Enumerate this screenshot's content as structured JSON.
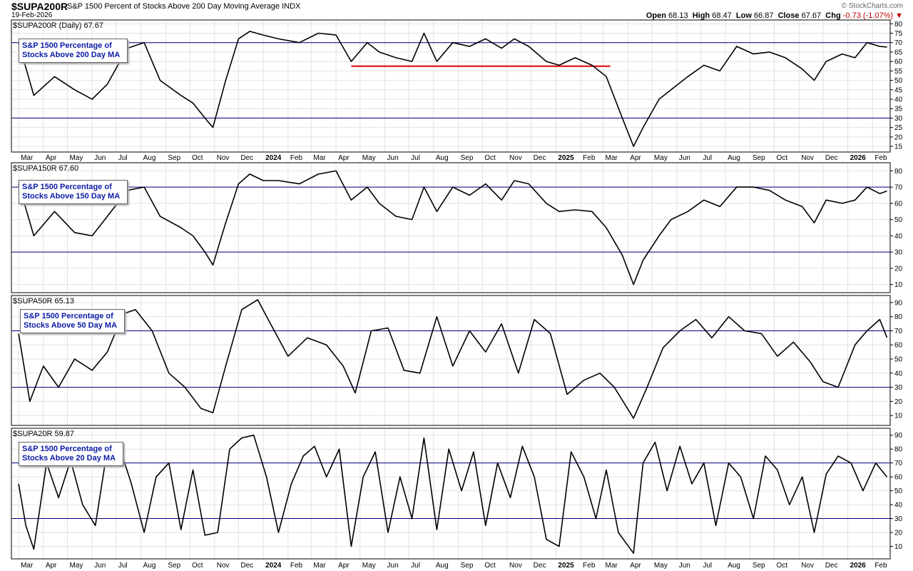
{
  "header": {
    "symbol": "$SUPA200R",
    "description": "S&P 1500 Percent of Stocks Above 200 Day Moving Average",
    "exchange": "INDX",
    "date": "19-Feb-2026",
    "watermark": "© StockCharts.com",
    "ohlc": {
      "open_label": "Open",
      "open": "68.13",
      "high_label": "High",
      "high": "68.47",
      "low_label": "Low",
      "low": "66.87",
      "close_label": "Close",
      "close": "67.67",
      "chg_label": "Chg",
      "chg": "-0.73 (-1.07%)",
      "chg_icon": "down-triangle-icon",
      "chg_color": "#c00000"
    }
  },
  "x_axis_labels": [
    "Mar",
    "Apr",
    "May",
    "Jun",
    "Jul",
    "Aug",
    "Sep",
    "Oct",
    "Nov",
    "Dec",
    "2024",
    "Feb",
    "Mar",
    "Apr",
    "May",
    "Jun",
    "Jul",
    "Aug",
    "Sep",
    "Oct",
    "Nov",
    "Dec",
    "2025",
    "Feb",
    "Mar",
    "Apr",
    "May",
    "Jun",
    "Jul",
    "Aug",
    "Sep",
    "Oct",
    "Nov",
    "Dec",
    "2026",
    "Feb"
  ],
  "colors": {
    "line": "#000000",
    "hline": "#000080",
    "grid": "#e2e2e2",
    "support": "#e00000",
    "annotation_text": "#0a1aa6"
  },
  "chart_data": [
    {
      "type": "line",
      "symbol": "$SUPA200R",
      "name": "$SUPA200R (Daily) 67.67",
      "annotation": "S&P 1500 Percentage of\nStocks Above 200 Day MA",
      "ylim": [
        12,
        82
      ],
      "yticks": [
        15,
        20,
        25,
        30,
        35,
        40,
        45,
        50,
        55,
        60,
        65,
        70,
        75,
        80
      ],
      "hlines": [
        30,
        70
      ],
      "support_line": {
        "from": "2024-04-20",
        "to": "2025-03-10",
        "value": 57.5
      },
      "x": [
        "2023-03-01",
        "2023-03-20",
        "2023-04-15",
        "2023-05-10",
        "2023-06-01",
        "2023-06-20",
        "2023-07-15",
        "2023-08-05",
        "2023-08-25",
        "2023-09-20",
        "2023-10-05",
        "2023-10-20",
        "2023-10-30",
        "2023-11-15",
        "2023-12-01",
        "2023-12-15",
        "2024-01-01",
        "2024-01-20",
        "2024-02-15",
        "2024-03-10",
        "2024-04-01",
        "2024-04-20",
        "2024-05-10",
        "2024-05-25",
        "2024-06-15",
        "2024-07-05",
        "2024-07-20",
        "2024-08-05",
        "2024-08-25",
        "2024-09-15",
        "2024-10-05",
        "2024-10-25",
        "2024-11-10",
        "2024-11-28",
        "2024-12-20",
        "2025-01-05",
        "2025-01-25",
        "2025-02-15",
        "2025-03-05",
        "2025-03-25",
        "2025-04-08",
        "2025-04-20",
        "2025-05-10",
        "2025-05-25",
        "2025-06-15",
        "2025-07-05",
        "2025-07-25",
        "2025-08-15",
        "2025-09-05",
        "2025-09-25",
        "2025-10-15",
        "2025-11-05",
        "2025-11-20",
        "2025-12-05",
        "2025-12-25",
        "2026-01-10",
        "2026-01-25",
        "2026-02-10",
        "2026-02-19"
      ],
      "y": [
        70,
        42,
        52,
        45,
        40,
        48,
        67,
        70,
        50,
        42,
        38,
        30,
        25,
        50,
        72,
        76,
        74,
        72,
        70,
        75,
        74,
        60,
        70,
        65,
        62,
        60,
        75,
        60,
        70,
        68,
        72,
        67,
        72,
        68,
        60,
        58,
        62,
        58,
        52,
        30,
        15,
        25,
        40,
        45,
        52,
        58,
        55,
        68,
        64,
        65,
        62,
        56,
        50,
        60,
        64,
        62,
        70,
        68,
        67.67
      ]
    },
    {
      "type": "line",
      "symbol": "$SUPA150R",
      "name": "$SUPA150R 67.60",
      "annotation": "S&P 1500 Percentage of\nStocks Above 150 Day MA",
      "ylim": [
        5,
        85
      ],
      "yticks": [
        10,
        20,
        30,
        40,
        50,
        60,
        70,
        80
      ],
      "hlines": [
        30,
        70
      ],
      "x": [
        "2023-03-01",
        "2023-03-20",
        "2023-04-15",
        "2023-05-10",
        "2023-06-01",
        "2023-06-20",
        "2023-07-15",
        "2023-08-05",
        "2023-08-25",
        "2023-09-20",
        "2023-10-05",
        "2023-10-20",
        "2023-10-30",
        "2023-11-15",
        "2023-12-01",
        "2023-12-15",
        "2024-01-01",
        "2024-01-20",
        "2024-02-15",
        "2024-03-10",
        "2024-04-01",
        "2024-04-20",
        "2024-05-10",
        "2024-05-25",
        "2024-06-15",
        "2024-07-05",
        "2024-07-20",
        "2024-08-05",
        "2024-08-25",
        "2024-09-15",
        "2024-10-05",
        "2024-10-25",
        "2024-11-10",
        "2024-11-28",
        "2024-12-20",
        "2025-01-05",
        "2025-01-25",
        "2025-02-15",
        "2025-03-05",
        "2025-03-25",
        "2025-04-08",
        "2025-04-20",
        "2025-05-10",
        "2025-05-25",
        "2025-06-15",
        "2025-07-05",
        "2025-07-25",
        "2025-08-15",
        "2025-09-05",
        "2025-09-25",
        "2025-10-15",
        "2025-11-05",
        "2025-11-20",
        "2025-12-05",
        "2025-12-25",
        "2026-01-10",
        "2026-01-25",
        "2026-02-10",
        "2026-02-19"
      ],
      "y": [
        72,
        40,
        55,
        42,
        40,
        52,
        68,
        70,
        52,
        45,
        40,
        30,
        22,
        48,
        72,
        78,
        74,
        74,
        72,
        78,
        80,
        62,
        70,
        60,
        52,
        50,
        70,
        55,
        70,
        65,
        72,
        62,
        74,
        72,
        60,
        55,
        56,
        55,
        45,
        28,
        10,
        25,
        40,
        50,
        55,
        62,
        58,
        70,
        70,
        68,
        62,
        58,
        48,
        62,
        60,
        62,
        70,
        66,
        67.6
      ]
    },
    {
      "type": "line",
      "symbol": "$SUPA50R",
      "name": "$SUPA50R 65.13",
      "annotation": "S&P 1500 Percentage of\nStocks Above 50 Day MA",
      "ylim": [
        3,
        95
      ],
      "yticks": [
        10,
        20,
        30,
        40,
        50,
        60,
        70,
        80,
        90
      ],
      "hlines": [
        30,
        70
      ],
      "x": [
        "2023-03-01",
        "2023-03-15",
        "2023-04-01",
        "2023-04-20",
        "2023-05-10",
        "2023-06-01",
        "2023-06-20",
        "2023-07-10",
        "2023-07-25",
        "2023-08-15",
        "2023-09-05",
        "2023-09-25",
        "2023-10-15",
        "2023-10-30",
        "2023-11-15",
        "2023-12-05",
        "2023-12-25",
        "2024-01-10",
        "2024-02-01",
        "2024-02-25",
        "2024-03-20",
        "2024-04-10",
        "2024-04-25",
        "2024-05-15",
        "2024-06-05",
        "2024-06-25",
        "2024-07-15",
        "2024-08-05",
        "2024-08-25",
        "2024-09-15",
        "2024-10-05",
        "2024-10-25",
        "2024-11-15",
        "2024-12-05",
        "2024-12-25",
        "2025-01-15",
        "2025-02-05",
        "2025-02-25",
        "2025-03-15",
        "2025-04-08",
        "2025-04-25",
        "2025-05-15",
        "2025-06-05",
        "2025-06-25",
        "2025-07-15",
        "2025-08-05",
        "2025-08-25",
        "2025-09-15",
        "2025-10-05",
        "2025-10-25",
        "2025-11-15",
        "2025-12-01",
        "2025-12-20",
        "2026-01-10",
        "2026-01-25",
        "2026-02-10",
        "2026-02-19"
      ],
      "y": [
        68,
        20,
        45,
        30,
        50,
        42,
        55,
        82,
        85,
        70,
        40,
        30,
        15,
        12,
        45,
        85,
        92,
        75,
        52,
        65,
        60,
        45,
        26,
        70,
        72,
        42,
        40,
        80,
        45,
        70,
        55,
        75,
        40,
        78,
        68,
        25,
        35,
        40,
        30,
        8,
        30,
        58,
        70,
        78,
        65,
        80,
        70,
        68,
        52,
        62,
        48,
        34,
        30,
        60,
        70,
        78,
        65.13
      ]
    },
    {
      "type": "line",
      "symbol": "$SUPA20R",
      "name": "$SUPA20R 59.87",
      "annotation": "S&P 1500 Percentage of\nStocks Above 20 Day MA",
      "ylim": [
        1,
        95
      ],
      "yticks": [
        10,
        20,
        30,
        40,
        50,
        60,
        70,
        80,
        90
      ],
      "hlines": [
        30,
        70
      ],
      "x": [
        "2023-03-01",
        "2023-03-10",
        "2023-03-20",
        "2023-04-05",
        "2023-04-20",
        "2023-05-05",
        "2023-05-20",
        "2023-06-05",
        "2023-06-20",
        "2023-07-05",
        "2023-07-20",
        "2023-08-05",
        "2023-08-20",
        "2023-09-05",
        "2023-09-20",
        "2023-10-05",
        "2023-10-20",
        "2023-11-05",
        "2023-11-20",
        "2023-12-05",
        "2023-12-20",
        "2024-01-05",
        "2024-01-20",
        "2024-02-05",
        "2024-02-20",
        "2024-03-05",
        "2024-03-20",
        "2024-04-05",
        "2024-04-20",
        "2024-05-05",
        "2024-05-20",
        "2024-06-05",
        "2024-06-20",
        "2024-07-05",
        "2024-07-20",
        "2024-08-05",
        "2024-08-20",
        "2024-09-05",
        "2024-09-20",
        "2024-10-05",
        "2024-10-20",
        "2024-11-05",
        "2024-11-20",
        "2024-12-05",
        "2024-12-20",
        "2025-01-05",
        "2025-01-20",
        "2025-02-05",
        "2025-02-20",
        "2025-03-05",
        "2025-03-20",
        "2025-04-08",
        "2025-04-20",
        "2025-05-05",
        "2025-05-20",
        "2025-06-05",
        "2025-06-20",
        "2025-07-05",
        "2025-07-20",
        "2025-08-05",
        "2025-08-20",
        "2025-09-05",
        "2025-09-20",
        "2025-10-05",
        "2025-10-20",
        "2025-11-05",
        "2025-11-20",
        "2025-12-05",
        "2025-12-20",
        "2026-01-05",
        "2026-01-20",
        "2026-02-05",
        "2026-02-19"
      ],
      "y": [
        55,
        25,
        8,
        70,
        45,
        72,
        40,
        25,
        80,
        82,
        55,
        20,
        60,
        70,
        22,
        65,
        18,
        20,
        80,
        88,
        90,
        60,
        20,
        55,
        75,
        82,
        60,
        80,
        10,
        60,
        78,
        20,
        60,
        30,
        88,
        22,
        80,
        50,
        78,
        25,
        70,
        45,
        82,
        60,
        15,
        10,
        78,
        60,
        30,
        65,
        20,
        5,
        70,
        85,
        50,
        82,
        55,
        70,
        25,
        70,
        60,
        30,
        75,
        65,
        40,
        60,
        20,
        62,
        75,
        70,
        50,
        70,
        59.87
      ]
    }
  ]
}
